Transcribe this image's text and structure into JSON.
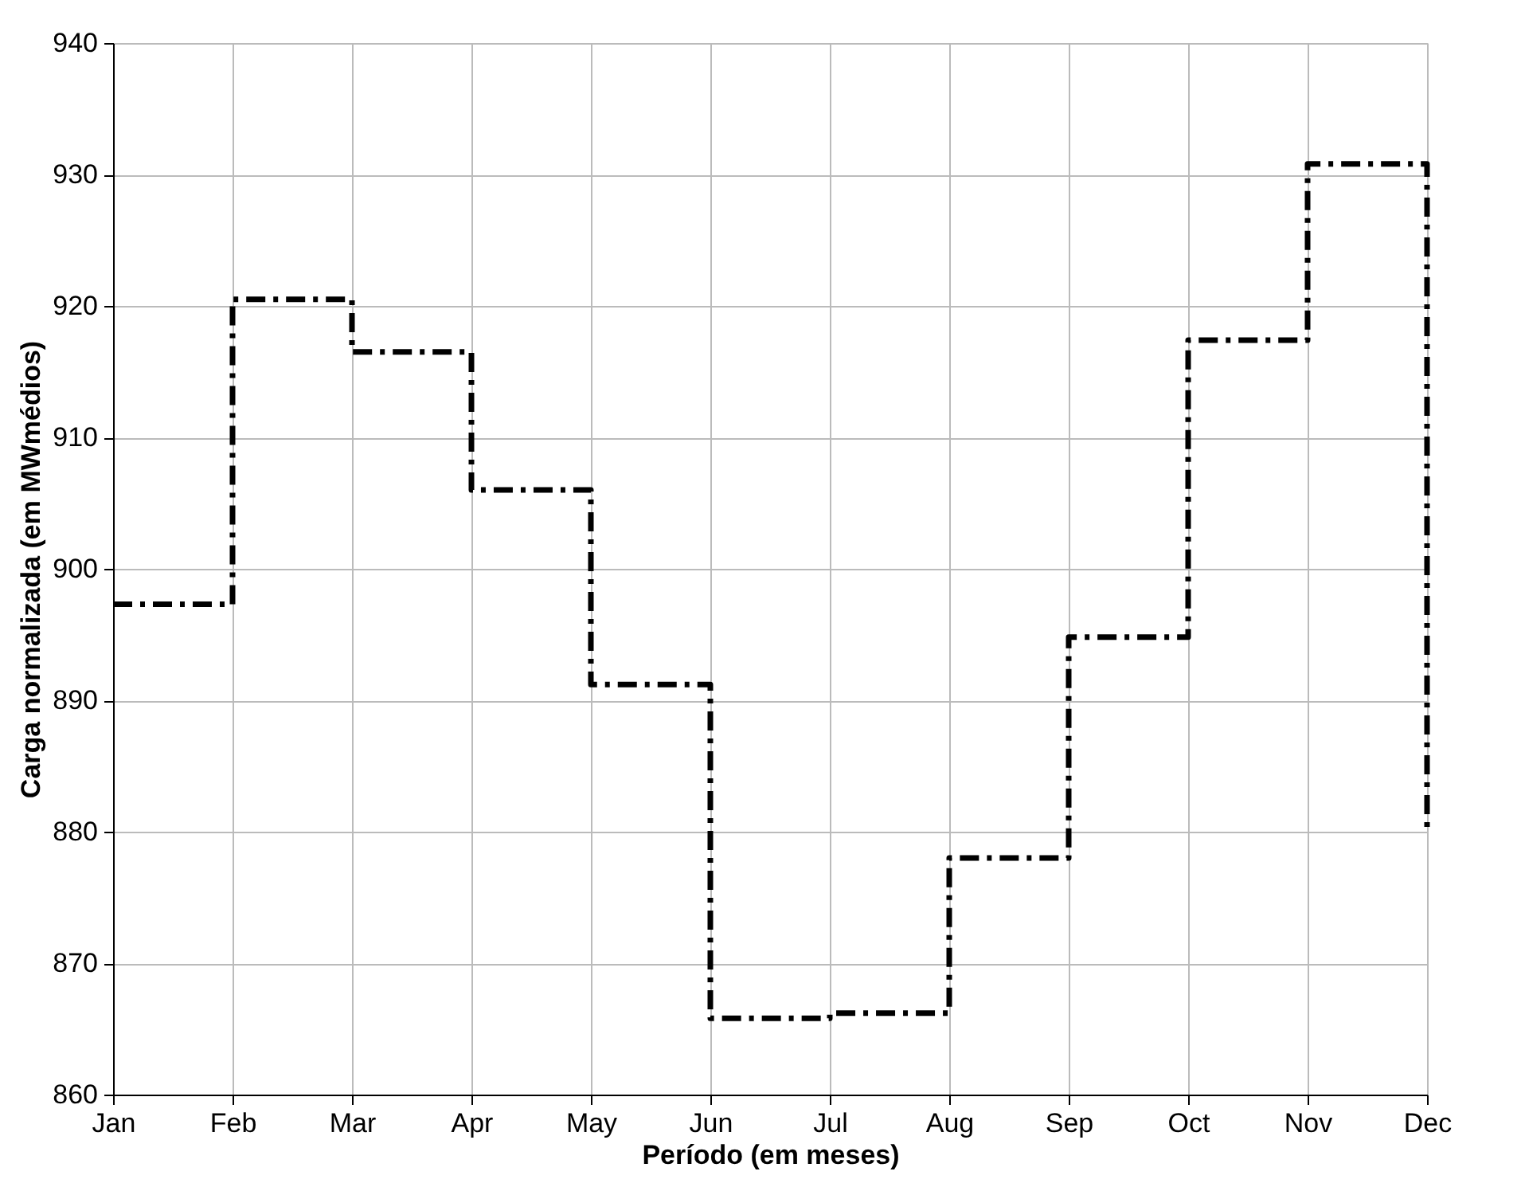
{
  "chart_data": {
    "type": "step",
    "xlabel": "Período (em meses)",
    "ylabel": "Carga normalizada (em MWmédios)",
    "categories": [
      "Jan",
      "Feb",
      "Mar",
      "Apr",
      "May",
      "Jun",
      "Jul",
      "Aug",
      "Sep",
      "Oct",
      "Nov",
      "Dec"
    ],
    "series": [
      {
        "color": "#000000",
        "values": [
          897.3,
          920.5,
          916.5,
          906.0,
          891.2,
          865.8,
          866.2,
          878.0,
          894.8,
          917.4,
          930.8,
          880.0
        ]
      }
    ],
    "ylim": [
      860,
      940
    ],
    "yticks": [
      860,
      870,
      880,
      890,
      900,
      910,
      920,
      930,
      940
    ],
    "grid": true,
    "line_style": "dashdot"
  }
}
